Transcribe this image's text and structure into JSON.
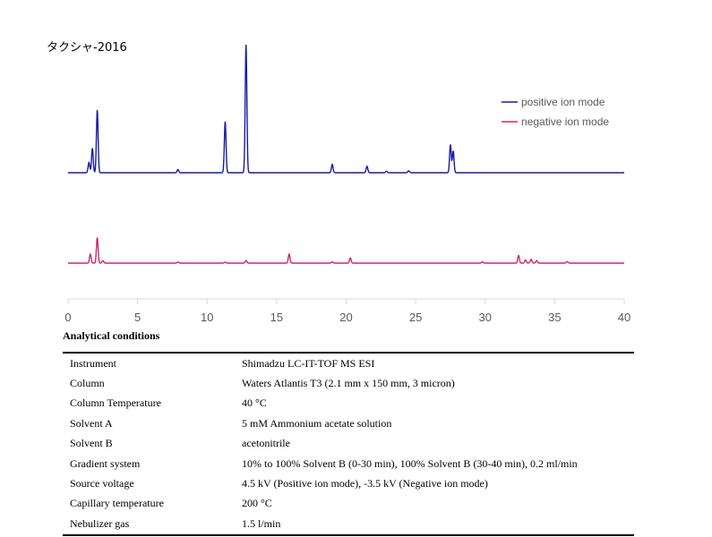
{
  "chart_data": {
    "type": "line",
    "title": "タクシャ-2016",
    "xlabel": "",
    "ylabel": "",
    "xlim": [
      0,
      40
    ],
    "ylim": [
      0,
      1
    ],
    "x_ticks": [
      "0",
      "5",
      "10",
      "15",
      "20",
      "25",
      "30",
      "35",
      "40"
    ],
    "grid": false,
    "legend_position": "top-right",
    "series": [
      {
        "name": "positive ion mode",
        "color": "#1a1aa6",
        "peaks": [
          {
            "x": 1.5,
            "y": 0.08
          },
          {
            "x": 1.75,
            "y": 0.19
          },
          {
            "x": 2.1,
            "y": 0.49
          },
          {
            "x": 7.9,
            "y": 0.025
          },
          {
            "x": 11.3,
            "y": 0.4
          },
          {
            "x": 12.8,
            "y": 1.0
          },
          {
            "x": 19.0,
            "y": 0.065
          },
          {
            "x": 21.5,
            "y": 0.05
          },
          {
            "x": 22.9,
            "y": 0.012
          },
          {
            "x": 24.5,
            "y": 0.015
          },
          {
            "x": 27.5,
            "y": 0.22
          },
          {
            "x": 27.7,
            "y": 0.17
          }
        ]
      },
      {
        "name": "negative ion mode",
        "color": "#c8286e",
        "peaks": [
          {
            "x": 1.6,
            "y": 0.07
          },
          {
            "x": 2.1,
            "y": 0.2
          },
          {
            "x": 2.5,
            "y": 0.02
          },
          {
            "x": 7.9,
            "y": 0.008
          },
          {
            "x": 11.3,
            "y": 0.008
          },
          {
            "x": 12.8,
            "y": 0.02
          },
          {
            "x": 15.9,
            "y": 0.07
          },
          {
            "x": 19.0,
            "y": 0.01
          },
          {
            "x": 20.3,
            "y": 0.04
          },
          {
            "x": 29.8,
            "y": 0.01
          },
          {
            "x": 32.4,
            "y": 0.06
          },
          {
            "x": 32.9,
            "y": 0.025
          },
          {
            "x": 33.3,
            "y": 0.03
          },
          {
            "x": 33.7,
            "y": 0.02
          },
          {
            "x": 35.9,
            "y": 0.012
          }
        ]
      }
    ]
  },
  "conditions": {
    "title": "Analytical conditions",
    "rows": [
      {
        "label": "Instrument",
        "value": "Shimadzu LC-IT-TOF MS ESI"
      },
      {
        "label": "Column",
        "value": "Waters Atlantis T3 (2.1 mm x 150 mm, 3 micron)"
      },
      {
        "label": "Column Temperature",
        "value": "40 °C"
      },
      {
        "label": "Solvent A",
        "value": "5 mM Ammonium acetate solution"
      },
      {
        "label": "Solvent B",
        "value": "acetonitrile"
      },
      {
        "label": "Gradient system",
        "value": "10% to 100% Solvent B (0-30 min), 100% Solvent B (30-40 min), 0.2 ml/min"
      },
      {
        "label": "Source voltage",
        "value": "4.5 kV (Positive ion mode), -3.5 kV (Negative ion mode)"
      },
      {
        "label": "Capillary temperature",
        "value": "200 °C"
      },
      {
        "label": "Nebulizer gas",
        "value": "1.5 l/min"
      }
    ]
  }
}
